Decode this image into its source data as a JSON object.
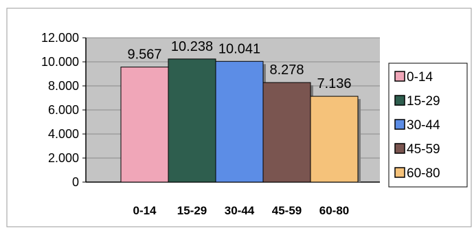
{
  "chart_data": {
    "type": "bar",
    "categories": [
      "0-14",
      "15-29",
      "30-44",
      "45-59",
      "60-80"
    ],
    "values": [
      9567,
      10238,
      10041,
      8278,
      7136
    ],
    "value_labels": [
      "9.567",
      "10.238",
      "10.041",
      "8.278",
      "7.136"
    ],
    "ylim": [
      0,
      12000
    ],
    "yticks": [
      0,
      2000,
      4000,
      6000,
      8000,
      10000,
      12000
    ],
    "ytick_labels": [
      "0",
      "2.000",
      "4.000",
      "6.000",
      "8.000",
      "10.000",
      "12.000"
    ],
    "title": "",
    "xlabel": "",
    "ylabel": "",
    "grid": true,
    "legend_position": "right",
    "legend": [
      "0-14",
      "15-29",
      "30-44",
      "45-59",
      "60-80"
    ],
    "colors": [
      "#f0a6b8",
      "#2e5e4e",
      "#5c8de6",
      "#7a5550",
      "#f5c27a"
    ],
    "plot_background": "#c4c4c4"
  }
}
